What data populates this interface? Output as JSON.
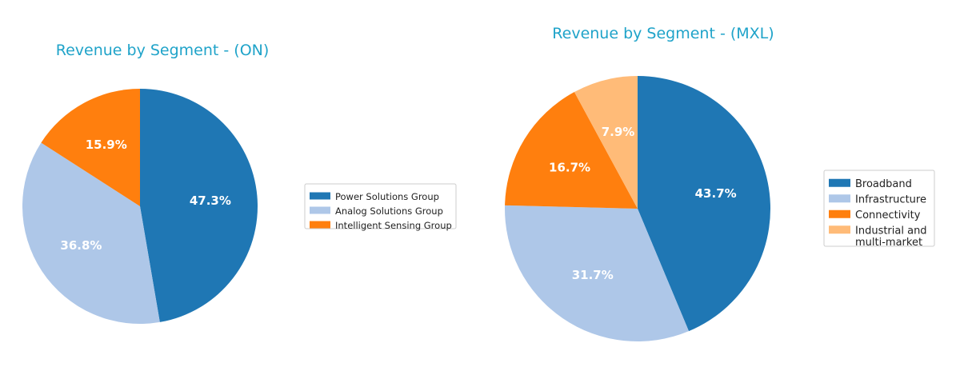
{
  "chart_data": [
    {
      "type": "pie",
      "title": "Revenue by Segment - (ON)",
      "categories": [
        "Power Solutions Group",
        "Analog Solutions Group",
        "Intelligent Sensing Group"
      ],
      "values": [
        47.3,
        36.8,
        15.9
      ],
      "labels": [
        "47.3%",
        "36.8%",
        "15.9%"
      ],
      "colors": [
        "#1f77b4",
        "#aec7e8",
        "#ff7f0e"
      ],
      "legend": [
        "Power Solutions Group",
        "Analog Solutions Group",
        "Intelligent Sensing Group"
      ],
      "legend_placement": "right",
      "start_angle": 90,
      "direction": "clockwise"
    },
    {
      "type": "pie",
      "title": "Revenue by Segment - (MXL)",
      "categories": [
        "Broadband",
        "Infrastructure",
        "Connectivity",
        "Industrial and multi-market"
      ],
      "values": [
        43.7,
        31.7,
        16.7,
        7.9
      ],
      "labels": [
        "43.7%",
        "31.7%",
        "16.7%",
        "7.9%"
      ],
      "colors": [
        "#1f77b4",
        "#aec7e8",
        "#ff7f0e",
        "#ffbb78"
      ],
      "legend": [
        "Broadband",
        "Infrastructure",
        "Connectivity",
        [
          "Industrial and",
          "multi-market"
        ]
      ],
      "legend_placement": "right",
      "start_angle": 90,
      "direction": "clockwise"
    }
  ]
}
